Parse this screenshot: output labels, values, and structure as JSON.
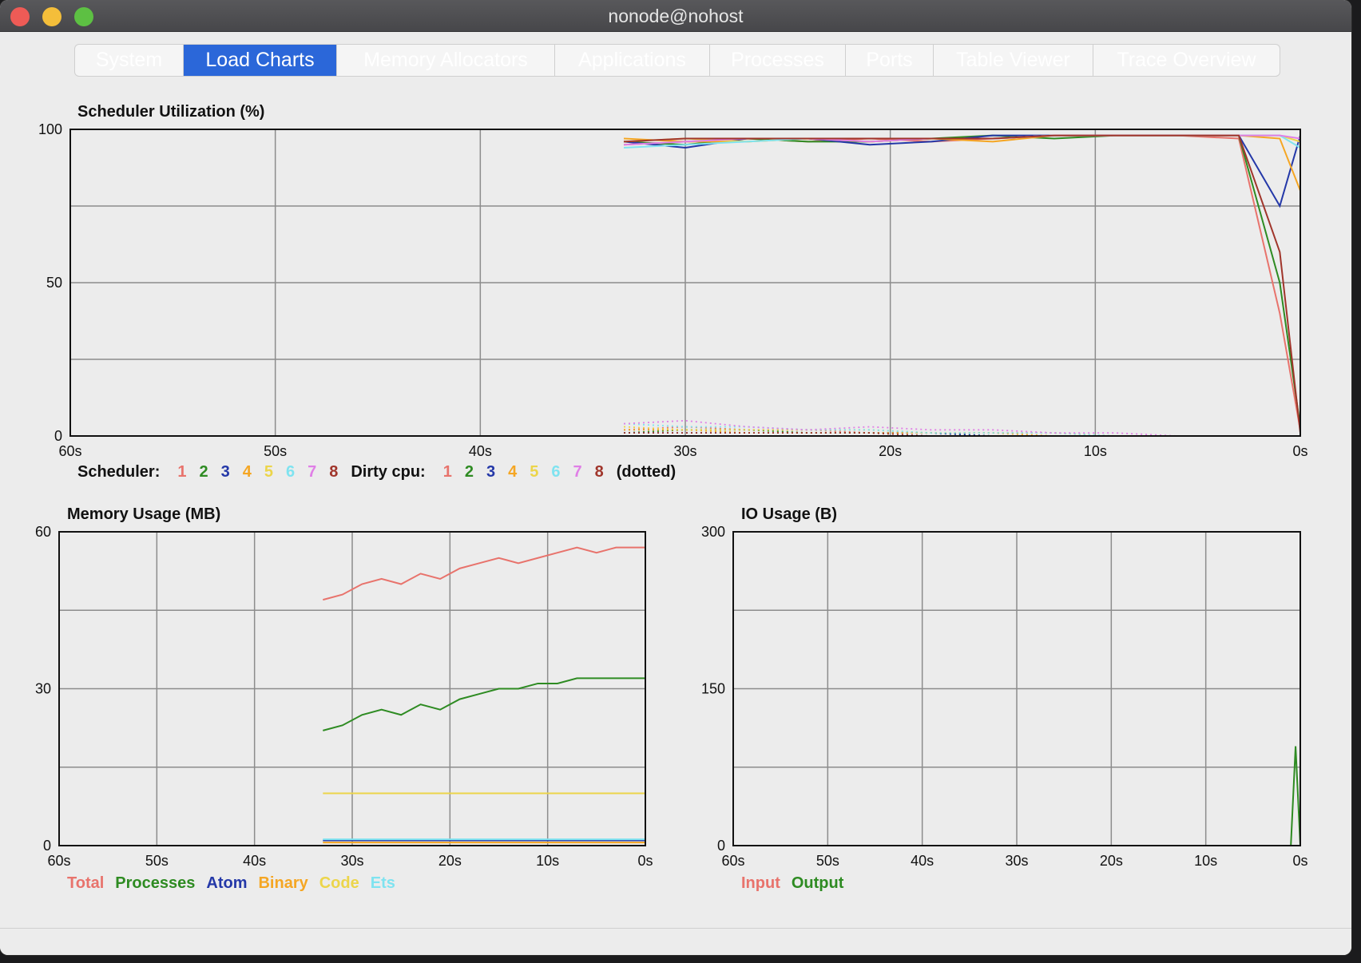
{
  "window": {
    "title": "nonode@nohost"
  },
  "tabs": [
    {
      "label": "System",
      "active": false
    },
    {
      "label": "Load Charts",
      "active": true
    },
    {
      "label": "Memory Allocators",
      "active": false
    },
    {
      "label": "Applications",
      "active": false
    },
    {
      "label": "Processes",
      "active": false
    },
    {
      "label": "Ports",
      "active": false
    },
    {
      "label": "Table Viewer",
      "active": false
    },
    {
      "label": "Trace Overview",
      "active": false
    }
  ],
  "colors": {
    "s1": "#e8736c",
    "s2": "#2e8b22",
    "s3": "#2438a8",
    "s4": "#f5a623",
    "s5": "#ecd54a",
    "s6": "#7fe3f0",
    "s7": "#e07fe6",
    "s8": "#a0352b"
  },
  "scheduler_chart": {
    "title": "Scheduler Utilization (%)",
    "legend": {
      "scheduler_label": "Scheduler:",
      "dirty_label": "Dirty cpu:",
      "numbers": [
        "1",
        "2",
        "3",
        "4",
        "5",
        "6",
        "7",
        "8"
      ],
      "dotted_note": "(dotted)"
    }
  },
  "memory_chart": {
    "title": "Memory Usage (MB)",
    "legend": [
      "Total",
      "Processes",
      "Atom",
      "Binary",
      "Code",
      "Ets"
    ]
  },
  "io_chart": {
    "title": "IO Usage (B)",
    "legend": [
      "Input",
      "Output"
    ]
  },
  "chart_data": [
    {
      "type": "line",
      "title": "Scheduler Utilization (%)",
      "x_ticks": [
        "60s",
        "50s",
        "40s",
        "30s",
        "20s",
        "10s",
        "0s"
      ],
      "y_ticks": [
        "100",
        "50",
        "0"
      ],
      "xlim": [
        60,
        0
      ],
      "ylim": [
        0,
        100
      ],
      "grid": true,
      "x": [
        33,
        30,
        27,
        24,
        21,
        18,
        15,
        12,
        9,
        6,
        3,
        1,
        0
      ],
      "series": [
        {
          "name": "1",
          "values": [
            95,
            96,
            97,
            96,
            97,
            96,
            97,
            98,
            98,
            98,
            97,
            40,
            2
          ]
        },
        {
          "name": "2",
          "values": [
            96,
            95,
            97,
            96,
            96,
            97,
            98,
            97,
            98,
            98,
            98,
            50,
            3
          ]
        },
        {
          "name": "3",
          "values": [
            96,
            94,
            97,
            97,
            95,
            96,
            98,
            98,
            98,
            98,
            98,
            75,
            98
          ]
        },
        {
          "name": "4",
          "values": [
            97,
            96,
            96,
            97,
            96,
            97,
            96,
            98,
            98,
            98,
            98,
            97,
            80
          ]
        },
        {
          "name": "5",
          "values": [
            96,
            97,
            96,
            97,
            97,
            97,
            97,
            98,
            98,
            98,
            98,
            98,
            96
          ]
        },
        {
          "name": "6",
          "values": [
            94,
            95,
            96,
            97,
            97,
            97,
            97,
            98,
            98,
            98,
            98,
            98,
            94
          ]
        },
        {
          "name": "7",
          "values": [
            95,
            96,
            97,
            97,
            96,
            97,
            97,
            98,
            98,
            98,
            98,
            98,
            97
          ]
        },
        {
          "name": "8",
          "values": [
            96,
            97,
            97,
            97,
            97,
            97,
            97,
            98,
            98,
            98,
            98,
            60,
            1
          ]
        }
      ],
      "dirty_series": [
        {
          "name": "1",
          "values": [
            2,
            3,
            2,
            2,
            1,
            1,
            1,
            1,
            0,
            0,
            0,
            0,
            0
          ]
        },
        {
          "name": "2",
          "values": [
            1,
            2,
            2,
            1,
            1,
            1,
            0,
            0,
            0,
            0,
            0,
            0,
            0
          ]
        },
        {
          "name": "3",
          "values": [
            1,
            1,
            1,
            1,
            1,
            1,
            0,
            0,
            0,
            0,
            0,
            0,
            0
          ]
        },
        {
          "name": "4",
          "values": [
            2,
            2,
            1,
            1,
            1,
            1,
            1,
            0,
            0,
            0,
            0,
            0,
            0
          ]
        },
        {
          "name": "5",
          "values": [
            3,
            2,
            2,
            2,
            2,
            1,
            1,
            1,
            0,
            0,
            0,
            0,
            0
          ]
        },
        {
          "name": "6",
          "values": [
            4,
            3,
            3,
            2,
            2,
            1,
            1,
            1,
            0,
            0,
            0,
            0,
            0
          ]
        },
        {
          "name": "7",
          "values": [
            4,
            5,
            3,
            2,
            3,
            2,
            2,
            1,
            1,
            0,
            0,
            0,
            0
          ]
        },
        {
          "name": "8",
          "values": [
            1,
            1,
            1,
            1,
            1,
            0,
            0,
            0,
            0,
            0,
            0,
            0,
            0
          ]
        }
      ]
    },
    {
      "type": "line",
      "title": "Memory Usage (MB)",
      "x_ticks": [
        "60s",
        "50s",
        "40s",
        "30s",
        "20s",
        "10s",
        "0s"
      ],
      "y_ticks": [
        "60",
        "30",
        "0"
      ],
      "xlim": [
        60,
        0
      ],
      "ylim": [
        0,
        60
      ],
      "grid": true,
      "x": [
        33,
        31,
        29,
        27,
        25,
        23,
        21,
        19,
        17,
        15,
        13,
        11,
        9,
        7,
        5,
        3,
        1,
        0
      ],
      "series": [
        {
          "name": "Total",
          "values": [
            47,
            48,
            50,
            51,
            50,
            52,
            51,
            53,
            54,
            55,
            54,
            55,
            56,
            57,
            56,
            57,
            57,
            57
          ]
        },
        {
          "name": "Processes",
          "values": [
            22,
            23,
            25,
            26,
            25,
            27,
            26,
            28,
            29,
            30,
            30,
            31,
            31,
            32,
            32,
            32,
            32,
            32
          ]
        },
        {
          "name": "Atom",
          "values": [
            1,
            1,
            1,
            1,
            1,
            1,
            1,
            1,
            1,
            1,
            1,
            1,
            1,
            1,
            1,
            1,
            1,
            1
          ]
        },
        {
          "name": "Binary",
          "values": [
            0.6,
            0.6,
            0.6,
            0.6,
            0.6,
            0.6,
            0.6,
            0.6,
            0.6,
            0.6,
            0.6,
            0.6,
            0.6,
            0.6,
            0.6,
            0.6,
            0.6,
            0.6
          ]
        },
        {
          "name": "Code",
          "values": [
            10,
            10,
            10,
            10,
            10,
            10,
            10,
            10,
            10,
            10,
            10,
            10,
            10,
            10,
            10,
            10,
            10,
            10
          ]
        },
        {
          "name": "Ets",
          "values": [
            1.2,
            1.2,
            1.2,
            1.2,
            1.2,
            1.2,
            1.2,
            1.2,
            1.2,
            1.2,
            1.2,
            1.2,
            1.2,
            1.2,
            1.2,
            1.2,
            1.2,
            1.2
          ]
        }
      ]
    },
    {
      "type": "line",
      "title": "IO Usage (B)",
      "x_ticks": [
        "60s",
        "50s",
        "40s",
        "30s",
        "20s",
        "10s",
        "0s"
      ],
      "y_ticks": [
        "300",
        "150",
        "0"
      ],
      "xlim": [
        60,
        0
      ],
      "ylim": [
        0,
        300
      ],
      "grid": true,
      "x": [
        33,
        20,
        10,
        1,
        0.5,
        0
      ],
      "series": [
        {
          "name": "Input",
          "values": [
            0,
            0,
            0,
            0,
            0,
            0
          ]
        },
        {
          "name": "Output",
          "values": [
            0,
            0,
            0,
            0,
            95,
            0
          ]
        }
      ]
    }
  ]
}
